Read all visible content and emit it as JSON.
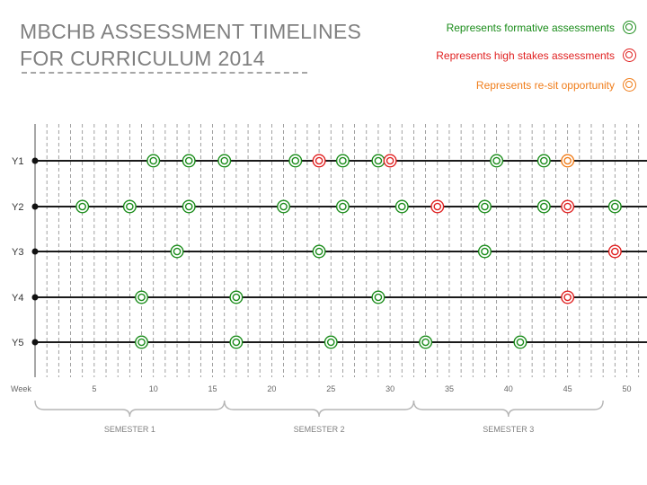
{
  "title": {
    "line1": "MBCHB ASSESSMENT TIMELINES",
    "line2": "FOR CURRICULUM 2014"
  },
  "legend": [
    {
      "key": "formative",
      "label": "Represents formative assessments",
      "color": "#1a8c1a"
    },
    {
      "key": "high_stakes",
      "label": "Represents high stakes assessments",
      "color": "#e02020"
    },
    {
      "key": "resit",
      "label": "Represents re-sit opportunity",
      "color": "#f07d1a"
    }
  ],
  "chart_data": {
    "type": "timeline",
    "x_label": "Week",
    "x_range": [
      0,
      52
    ],
    "x_ticks": [
      5,
      10,
      15,
      20,
      25,
      30,
      35,
      40,
      45,
      50
    ],
    "semesters": [
      {
        "label": "SEMESTER 1",
        "start": 0,
        "end": 16
      },
      {
        "label": "SEMESTER 2",
        "start": 16,
        "end": 32
      },
      {
        "label": "SEMESTER 3",
        "start": 32,
        "end": 48
      }
    ],
    "rows": [
      {
        "label": "Y1",
        "assessments": [
          {
            "week": 10,
            "type": "formative"
          },
          {
            "week": 13,
            "type": "formative"
          },
          {
            "week": 16,
            "type": "formative"
          },
          {
            "week": 22,
            "type": "formative"
          },
          {
            "week": 24,
            "type": "high_stakes"
          },
          {
            "week": 26,
            "type": "formative"
          },
          {
            "week": 29,
            "type": "formative"
          },
          {
            "week": 30,
            "type": "high_stakes"
          },
          {
            "week": 39,
            "type": "formative"
          },
          {
            "week": 43,
            "type": "formative"
          },
          {
            "week": 45,
            "type": "resit"
          }
        ]
      },
      {
        "label": "Y2",
        "assessments": [
          {
            "week": 4,
            "type": "formative"
          },
          {
            "week": 8,
            "type": "formative"
          },
          {
            "week": 13,
            "type": "formative"
          },
          {
            "week": 21,
            "type": "formative"
          },
          {
            "week": 26,
            "type": "formative"
          },
          {
            "week": 31,
            "type": "formative"
          },
          {
            "week": 34,
            "type": "high_stakes"
          },
          {
            "week": 38,
            "type": "formative"
          },
          {
            "week": 43,
            "type": "formative"
          },
          {
            "week": 45,
            "type": "high_stakes"
          },
          {
            "week": 49,
            "type": "formative"
          }
        ]
      },
      {
        "label": "Y3",
        "assessments": [
          {
            "week": 12,
            "type": "formative"
          },
          {
            "week": 24,
            "type": "formative"
          },
          {
            "week": 38,
            "type": "formative"
          },
          {
            "week": 49,
            "type": "high_stakes"
          }
        ]
      },
      {
        "label": "Y4",
        "assessments": [
          {
            "week": 9,
            "type": "formative"
          },
          {
            "week": 17,
            "type": "formative"
          },
          {
            "week": 29,
            "type": "formative"
          },
          {
            "week": 45,
            "type": "high_stakes"
          }
        ]
      },
      {
        "label": "Y5",
        "assessments": [
          {
            "week": 9,
            "type": "formative"
          },
          {
            "week": 17,
            "type": "formative"
          },
          {
            "week": 25,
            "type": "formative"
          },
          {
            "week": 33,
            "type": "formative"
          },
          {
            "week": 41,
            "type": "formative"
          }
        ]
      }
    ]
  }
}
